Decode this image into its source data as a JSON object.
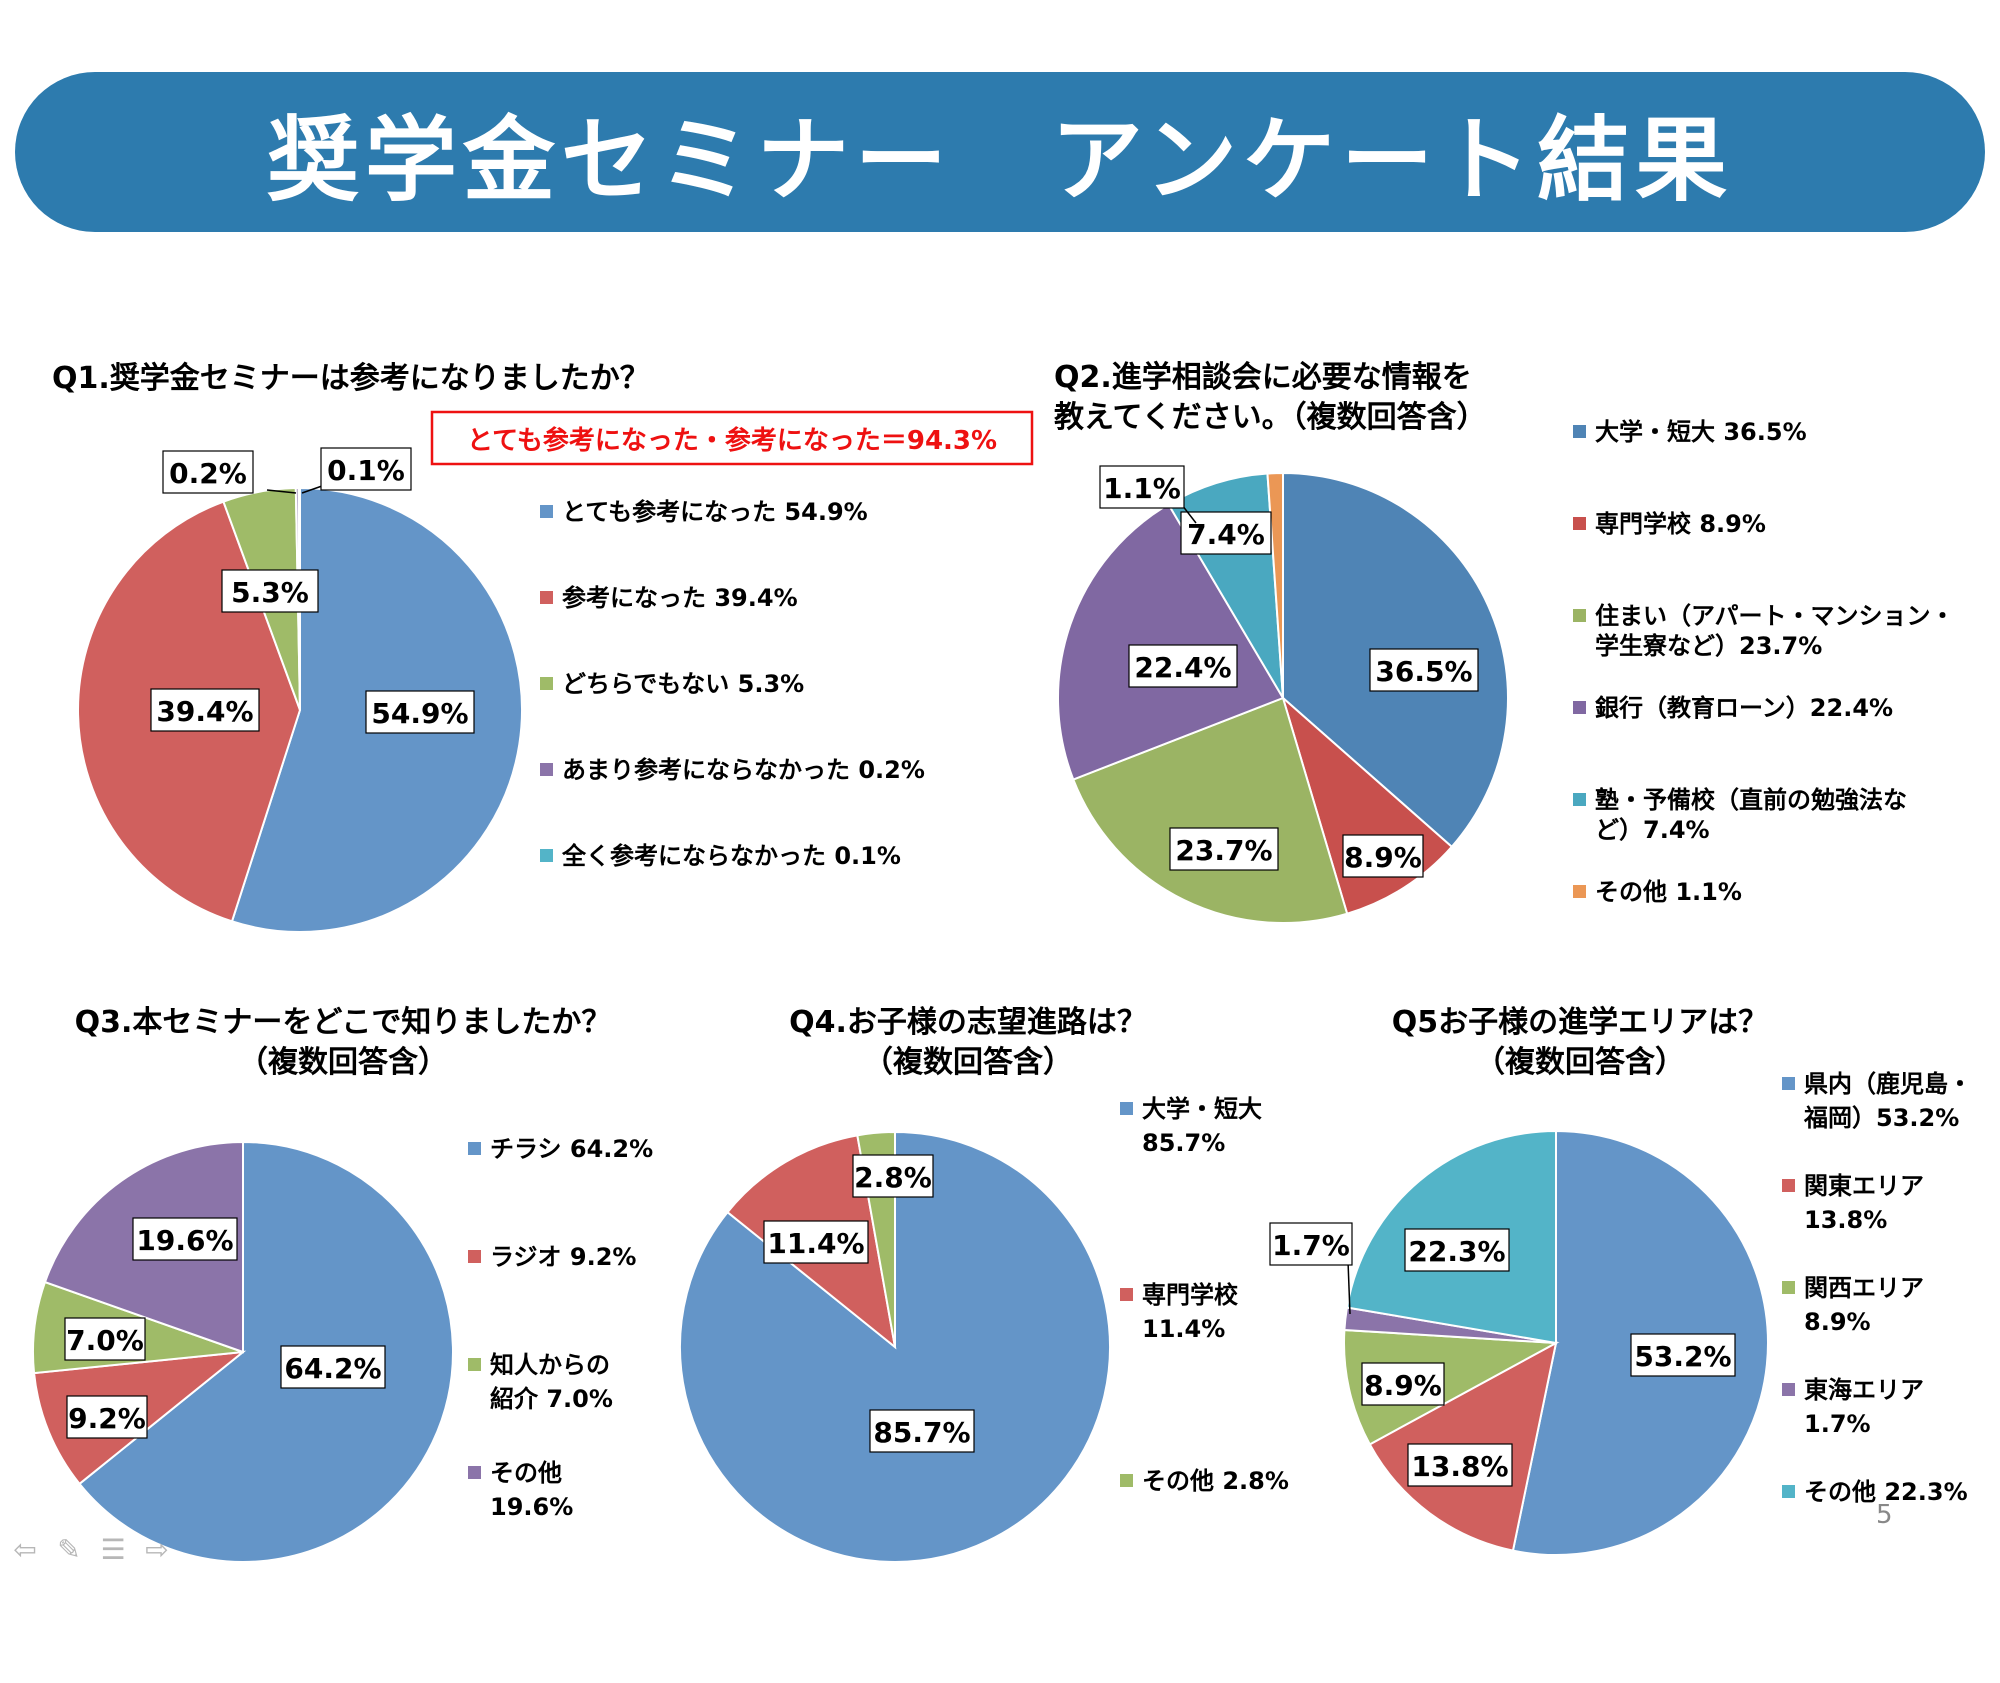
{
  "banner": {
    "title": "奨学金セミナー　アンケート結果"
  },
  "slide_number": "5",
  "colors": {
    "banner": "#2d7bae",
    "blue": "#6495c8",
    "blue_dark": "#4f84b5",
    "red": "#d0605e",
    "green": "#9fbb68",
    "purple": "#8b74a9",
    "teal": "#53b4c8",
    "orange": "#eb9755",
    "highlight": "#ee1111"
  },
  "nav_icons": [
    "arrow-left-icon",
    "pen-icon",
    "menu-icon",
    "arrow-right-icon"
  ],
  "chart_data": [
    {
      "id": "q1",
      "type": "pie",
      "title": [
        "Q1.奨学金セミナーは参考になりましたか？"
      ],
      "highlight": "とても参考になった・参考になった＝94.3%",
      "slices": [
        {
          "label": "とても参考になった",
          "value": 54.9,
          "text": "54.9%",
          "legend": [
            "とても参考になった 54.9%"
          ],
          "color": "#6495c8"
        },
        {
          "label": "参考になった",
          "value": 39.4,
          "text": "39.4%",
          "legend": [
            "参考になった 39.4%"
          ],
          "color": "#d0605e"
        },
        {
          "label": "どちらでもない",
          "value": 5.3,
          "text": "5.3%",
          "legend": [
            "どちらでもない 5.3%"
          ],
          "color": "#9fbb68"
        },
        {
          "label": "あまり参考にならなかった",
          "value": 0.2,
          "text": "0.2%",
          "legend": [
            "あまり参考にならなかった 0.2%"
          ],
          "color": "#8b74a9"
        },
        {
          "label": "全く参考にならなかった",
          "value": 0.1,
          "text": "0.1%",
          "legend": [
            "全く参考にならなかった 0.1%"
          ],
          "color": "#53b4c8"
        }
      ]
    },
    {
      "id": "q2",
      "type": "pie",
      "title": [
        "Q2.進学相談会に必要な情報を",
        "教えてください。（複数回答含）"
      ],
      "slices": [
        {
          "label": "大学・短大",
          "value": 36.5,
          "text": "36.5%",
          "legend": [
            "大学・短大 36.5%"
          ],
          "color": "#4f84b5"
        },
        {
          "label": "専門学校",
          "value": 8.9,
          "text": "8.9%",
          "legend": [
            "専門学校 8.9%"
          ],
          "color": "#c8504d"
        },
        {
          "label": "住まい（アパート・マンション・学生寮など）",
          "value": 23.7,
          "text": "23.7%",
          "legend": [
            "住まい（アパート・マンション・",
            "学生寮など）23.7%"
          ],
          "color": "#9bb464"
        },
        {
          "label": "銀行（教育ローン）",
          "value": 22.4,
          "text": "22.4%",
          "legend": [
            "銀行（教育ローン）22.4%"
          ],
          "color": "#8068a2"
        },
        {
          "label": "塾・予備校（直前の勉強法など）",
          "value": 7.4,
          "text": "7.4%",
          "legend": [
            "塾・予備校（直前の勉強法な",
            "ど）7.4%"
          ],
          "color": "#4aa8c0"
        },
        {
          "label": "その他",
          "value": 1.1,
          "text": "1.1%",
          "legend": [
            "その他 1.1%"
          ],
          "color": "#eb9755"
        }
      ]
    },
    {
      "id": "q3",
      "type": "pie",
      "title": [
        "Q3.本セミナーをどこで知りましたか？",
        "（複数回答含）"
      ],
      "slices": [
        {
          "label": "チラシ",
          "value": 64.2,
          "text": "64.2%",
          "legend": [
            "チラシ 64.2%"
          ],
          "color": "#6495c8"
        },
        {
          "label": "ラジオ",
          "value": 9.2,
          "text": "9.2%",
          "legend": [
            "ラジオ 9.2%"
          ],
          "color": "#d0605e"
        },
        {
          "label": "知人からの紹介",
          "value": 7.0,
          "text": "7.0%",
          "legend": [
            "知人からの",
            "紹介 7.0%"
          ],
          "color": "#9fbb68"
        },
        {
          "label": "その他",
          "value": 19.6,
          "text": "19.6%",
          "legend": [
            "その他",
            "19.6%"
          ],
          "color": "#8b74a9"
        }
      ]
    },
    {
      "id": "q4",
      "type": "pie",
      "title": [
        "Q4.お子様の志望進路は？",
        "（複数回答含）"
      ],
      "slices": [
        {
          "label": "大学・短大",
          "value": 85.7,
          "text": "85.7%",
          "legend": [
            "大学・短大",
            "85.7%"
          ],
          "color": "#6495c8"
        },
        {
          "label": "専門学校",
          "value": 11.4,
          "text": "11.4%",
          "legend": [
            "専門学校",
            "11.4%"
          ],
          "color": "#d0605e"
        },
        {
          "label": "その他",
          "value": 2.8,
          "text": "2.8%",
          "legend": [
            "その他 2.8%"
          ],
          "color": "#9fbb68"
        }
      ]
    },
    {
      "id": "q5",
      "type": "pie",
      "title": [
        "Q5お子様の進学エリアは？",
        "（複数回答含）"
      ],
      "slices": [
        {
          "label": "県内（鹿児島・福岡）",
          "value": 53.2,
          "text": "53.2%",
          "legend": [
            "県内（鹿児島・",
            "福岡）53.2%"
          ],
          "color": "#6495c8"
        },
        {
          "label": "関東エリア",
          "value": 13.8,
          "text": "13.8%",
          "legend": [
            "関東エリア",
            "13.8%"
          ],
          "color": "#d0605e"
        },
        {
          "label": "関西エリア",
          "value": 8.9,
          "text": "8.9%",
          "legend": [
            "関西エリア",
            "8.9%"
          ],
          "color": "#9fbb68"
        },
        {
          "label": "東海エリア",
          "value": 1.7,
          "text": "1.7%",
          "legend": [
            "東海エリア",
            "1.7%"
          ],
          "color": "#8b74a9"
        },
        {
          "label": "その他",
          "value": 22.3,
          "text": "22.3%",
          "legend": [
            "その他 22.3%"
          ],
          "color": "#53b4c8"
        }
      ]
    }
  ]
}
